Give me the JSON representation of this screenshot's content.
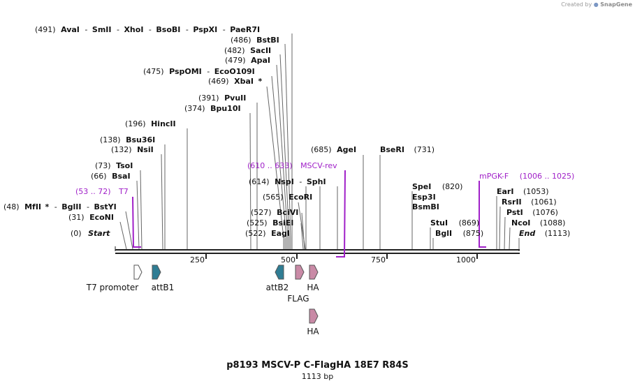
{
  "app": {
    "credit_prefix": "Created by",
    "credit_brand": "SnapGene"
  },
  "map": {
    "title": "p8193 MSCV-P C-FlagHA 18E7 R84S",
    "length_label": "1113 bp",
    "total_bp": 1113,
    "start_label": "Start",
    "start_pos": "(0)",
    "end_label": "End",
    "end_pos": "(1113)",
    "ticks": [
      {
        "label": "250",
        "bp": 250
      },
      {
        "label": "500",
        "bp": 500
      },
      {
        "label": "750",
        "bp": 750
      },
      {
        "label": "1000",
        "bp": 1000
      }
    ],
    "enzymes_left": [
      {
        "pos": "(491)",
        "name": "AvaI",
        "bp": 491
      },
      {
        "pos": "(486)",
        "name": "BstBI",
        "bp": 486
      },
      {
        "pos": "(482)",
        "name": "SacII",
        "bp": 482
      },
      {
        "pos": "(479)",
        "name": "ApaI",
        "bp": 479
      },
      {
        "pos": "(475)",
        "name": "PspOMI",
        "bp": 475
      },
      {
        "pos": "(469)",
        "name": "XbaI",
        "bp": 469,
        "star": "*"
      },
      {
        "pos": "(391)",
        "name": "PvuII",
        "bp": 391
      },
      {
        "pos": "(374)",
        "name": "Bpu10I",
        "bp": 374
      },
      {
        "pos": "(196)",
        "name": "HincII",
        "bp": 196
      },
      {
        "pos": "(138)",
        "name": "Bsu36I",
        "bp": 138
      },
      {
        "pos": "(132)",
        "name": "NsiI",
        "bp": 132
      },
      {
        "pos": "(73)",
        "name": "TsoI",
        "bp": 73
      },
      {
        "pos": "(66)",
        "name": "BsaI",
        "bp": 66
      },
      {
        "pos": "(48)",
        "name": "MfII",
        "bp": 48,
        "star": "*"
      },
      {
        "pos": "(31)",
        "name": "EcoNI",
        "bp": 31
      },
      {
        "pos": "(614)",
        "name": "NspI",
        "bp": 614
      },
      {
        "pos": "(565)",
        "name": "EcoRI",
        "bp": 565
      },
      {
        "pos": "(527)",
        "name": "BciVI",
        "bp": 527
      },
      {
        "pos": "(525)",
        "name": "BsiEI",
        "bp": 525
      },
      {
        "pos": "(522)",
        "name": "EagI",
        "bp": 522
      }
    ],
    "enzymes_group_extra": {
      "ava_group": [
        "SmII",
        "XhoI",
        "BsoBI",
        "PspXI",
        "PaeR7I"
      ],
      "psp_group": [
        "EcoO109I"
      ],
      "mfl_group": [
        "BglII",
        "BstYI"
      ],
      "nsp_group": [
        "SphI"
      ]
    },
    "enzymes_right": [
      {
        "pos": "(685)",
        "name": "AgeI",
        "bp": 685
      },
      {
        "pos": "(731)",
        "name": "BseRI",
        "bp": 731
      },
      {
        "pos": "(820)",
        "name": "SpeI",
        "bp": 820
      },
      {
        "pos": "",
        "name": "Esp3I",
        "bp": 820
      },
      {
        "pos": "",
        "name": "BsmBI",
        "bp": 820
      },
      {
        "pos": "(869)",
        "name": "StuI",
        "bp": 869
      },
      {
        "pos": "(875)",
        "name": "BglI",
        "bp": 875
      },
      {
        "pos": "(1053)",
        "name": "EarI",
        "bp": 1053
      },
      {
        "pos": "(1061)",
        "name": "RsrII",
        "bp": 1061
      },
      {
        "pos": "(1076)",
        "name": "PstI",
        "bp": 1076
      },
      {
        "pos": "(1088)",
        "name": "NcoI",
        "bp": 1088
      }
    ],
    "primers": [
      {
        "name": "T7",
        "range": "(53 .. 72)"
      },
      {
        "name": "MSCV-rev",
        "range": "(610 .. 633)"
      },
      {
        "name": "mPGK-F",
        "range": "(1006 .. 1025)"
      }
    ],
    "features": [
      {
        "name": "T7 promoter",
        "type": "promoter"
      },
      {
        "name": "attB1",
        "type": "att"
      },
      {
        "name": "attB2",
        "type": "att"
      },
      {
        "name": "FLAG",
        "type": "tag"
      },
      {
        "name": "HA",
        "type": "tag"
      },
      {
        "name": "HA",
        "type": "tag"
      }
    ],
    "colors": {
      "primer": "#a020c8",
      "att": "#2f7d94",
      "tag": "#c98aa6",
      "promoter": "#ffffff",
      "line": "#555555"
    }
  }
}
